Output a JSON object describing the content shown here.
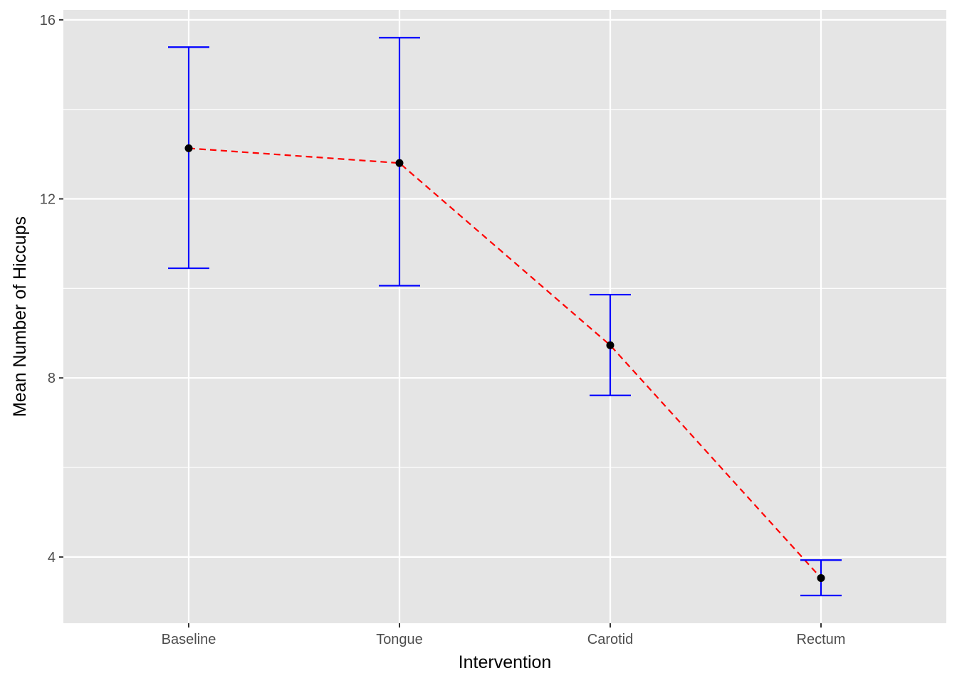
{
  "chart_data": {
    "type": "line",
    "xlabel": "Intervention",
    "ylabel": "Mean Number of Hiccups",
    "categories": [
      "Baseline",
      "Tongue",
      "Carotid",
      "Rectum"
    ],
    "y_ticks": [
      4,
      8,
      12,
      16
    ],
    "y_minor_ticks": [
      6,
      10,
      14
    ],
    "ylim": [
      2.52,
      16.22
    ],
    "grid": true,
    "series": [
      {
        "values": [
          13.13,
          12.8,
          8.73,
          3.53
        ],
        "error_lower": [
          10.45,
          10.06,
          7.61,
          3.14
        ],
        "error_upper": [
          15.39,
          15.6,
          9.86,
          3.93
        ]
      }
    ],
    "colors": {
      "panel_background": "#e5e5e5",
      "grid": "#ffffff",
      "error_bars": "#0000ff",
      "line": "#ff0000",
      "points": "#000000"
    },
    "line_style": "dashed"
  }
}
